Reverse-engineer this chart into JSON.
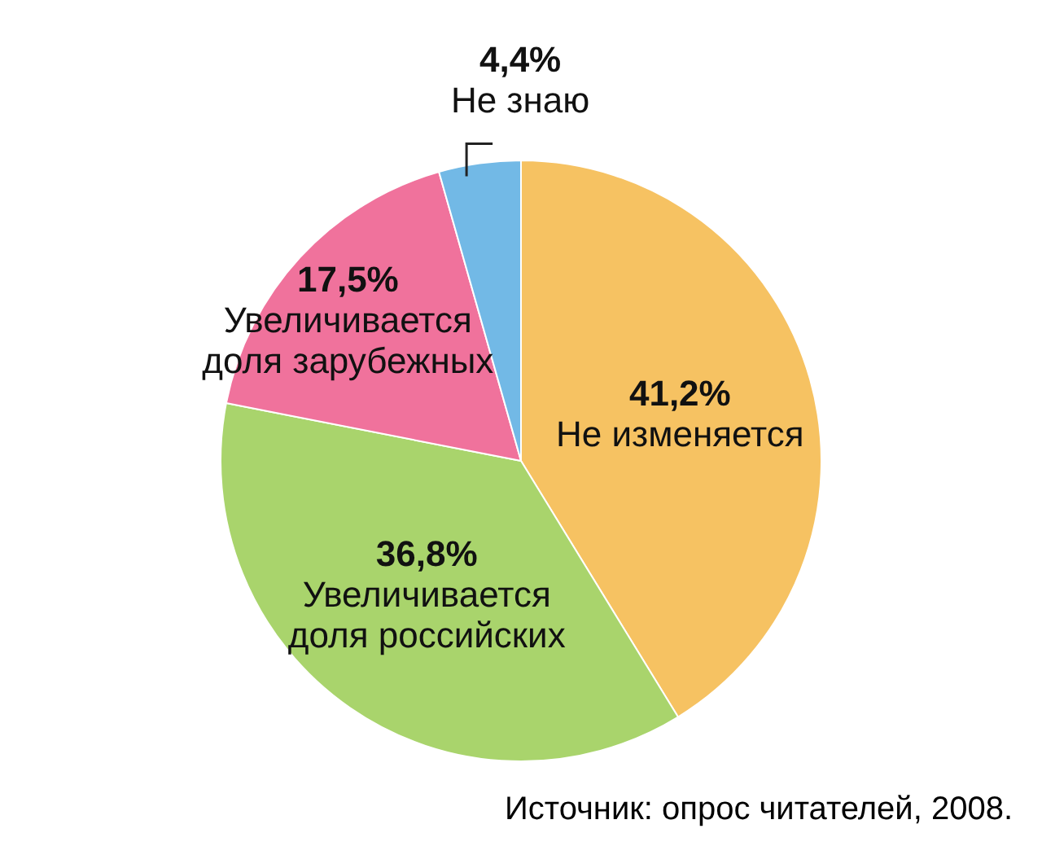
{
  "chart_data": {
    "type": "pie",
    "categories": [
      "Не изменяется",
      "Увеличивается доля российских",
      "Увеличивается доля зарубежных",
      "Не знаю"
    ],
    "values": [
      41.2,
      36.8,
      17.5,
      4.4
    ],
    "value_labels": [
      "41,2%",
      "36,8%",
      "17,5%",
      "4,4%"
    ],
    "colors": [
      "#f6c262",
      "#a9d46c",
      "#f0729c",
      "#72b9e6"
    ],
    "legend": false,
    "annotations": [
      "Источник: опрос читателей, 2008."
    ]
  }
}
